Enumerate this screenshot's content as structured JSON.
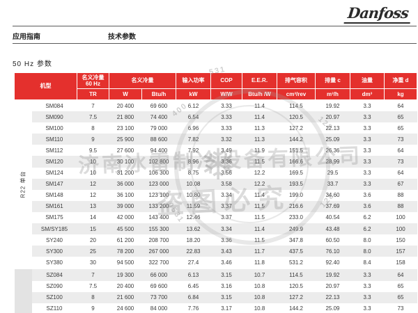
{
  "page": {
    "logo_text": "Danfoss",
    "nav_left": "应用指南",
    "nav_right": "技术参数",
    "section_title": "50 Hz 参数"
  },
  "colors": {
    "header_red": "#e4302d",
    "row_alt_gray": "#ececec",
    "group_gutter_gray": "#e3e3e3"
  },
  "table": {
    "header": {
      "model": "机型",
      "cap60_line1": "名义冷量",
      "cap60_line2": "60 Hz",
      "cap60_unit": "TR",
      "cap": "名义冷量",
      "cap_unit_w": "W",
      "cap_unit_btu": "Btu/h",
      "power": "输入功率",
      "power_unit": "kW",
      "cop": "COP",
      "cop_unit": "W/W",
      "eer": "E.E.R.",
      "eer_unit": "Btu/h /W",
      "disp_vol": "排气容积",
      "disp_vol_unit": "cm³/rev",
      "disp": "排量 c",
      "disp_unit": "m³/h",
      "oil": "油量",
      "oil_unit": "dm³",
      "weight": "净重 d",
      "weight_unit": "kg"
    },
    "groups": [
      {
        "label": "R22 单台",
        "rows": [
          [
            "SM084",
            "7",
            "20 400",
            "69 600",
            "6.12",
            "3.33",
            "11.4",
            "114.5",
            "19.92",
            "3.3",
            "64"
          ],
          [
            "SM090",
            "7.5",
            "21 800",
            "74 400",
            "6.54",
            "3.33",
            "11.4",
            "120.5",
            "20.97",
            "3.3",
            "65"
          ],
          [
            "SM100",
            "8",
            "23 100",
            "79 000",
            "6.96",
            "3.33",
            "11.3",
            "127.2",
            "22.13",
            "3.3",
            "65"
          ],
          [
            "SM110",
            "9",
            "25 900",
            "88 600",
            "7.82",
            "3.32",
            "11.3",
            "144.2",
            "25.09",
            "3.3",
            "73"
          ],
          [
            "SM112",
            "9.5",
            "27 600",
            "94 400",
            "7.92",
            "3.49",
            "11.9",
            "151.5",
            "26.36",
            "3.3",
            "64"
          ],
          [
            "SM120",
            "10",
            "30 100",
            "102 800",
            "8.96",
            "3.36",
            "11.5",
            "166.6",
            "28.99",
            "3.3",
            "73"
          ],
          [
            "SM124",
            "10",
            "31 200",
            "106 300",
            "8.75",
            "3.56",
            "12.2",
            "169.5",
            "29.5",
            "3.3",
            "64"
          ],
          [
            "SM147",
            "12",
            "36 000",
            "123 000",
            "10.08",
            "3.58",
            "12.2",
            "193.5",
            "33.7",
            "3.3",
            "67"
          ],
          [
            "SM148",
            "12",
            "36 100",
            "123 100",
            "10.80",
            "3.34",
            "11.4",
            "199.0",
            "34.60",
            "3.6",
            "88"
          ],
          [
            "SM161",
            "13",
            "39 000",
            "133 200",
            "11.59",
            "3.37",
            "11.5",
            "216.6",
            "37.69",
            "3.6",
            "88"
          ],
          [
            "SM175",
            "14",
            "42 000",
            "143 400",
            "12.46",
            "3.37",
            "11.5",
            "233.0",
            "40.54",
            "6.2",
            "100"
          ],
          [
            "SM/SY185",
            "15",
            "45 500",
            "155 300",
            "13.62",
            "3.34",
            "11.4",
            "249.9",
            "43.48",
            "6.2",
            "100"
          ],
          [
            "SY240",
            "20",
            "61 200",
            "208 700",
            "18.20",
            "3.36",
            "11.5",
            "347.8",
            "60.50",
            "8.0",
            "150"
          ],
          [
            "SY300",
            "25",
            "78 200",
            "267 000",
            "22.83",
            "3.43",
            "11.7",
            "437.5",
            "76.10",
            "8.0",
            "157"
          ],
          [
            "SY380",
            "30",
            "94 500",
            "322 700",
            "27.4",
            "3.46",
            "11.8",
            "531.2",
            "92.40",
            "8.4",
            "158"
          ]
        ]
      },
      {
        "label": "",
        "rows": [
          [
            "SZ084",
            "7",
            "19 300",
            "66 000",
            "6.13",
            "3.15",
            "10.7",
            "114.5",
            "19.92",
            "3.3",
            "64"
          ],
          [
            "SZ090",
            "7.5",
            "20 400",
            "69 600",
            "6.45",
            "3.16",
            "10.8",
            "120.5",
            "20.97",
            "3.3",
            "65"
          ],
          [
            "SZ100",
            "8",
            "21 600",
            "73 700",
            "6.84",
            "3.15",
            "10.8",
            "127.2",
            "22.13",
            "3.3",
            "65"
          ],
          [
            "SZ110",
            "9",
            "24 600",
            "84 000",
            "7.76",
            "3.17",
            "10.8",
            "144.2",
            "25.09",
            "3.3",
            "73"
          ]
        ]
      }
    ]
  },
  "watermark": {
    "company": "济南冰雷制冷设备有限公司",
    "notice": "盗图必究",
    "snowflake_icon": "❄",
    "phone_fragments": [
      "400",
      "128",
      "128",
      "0531",
      "531"
    ]
  }
}
